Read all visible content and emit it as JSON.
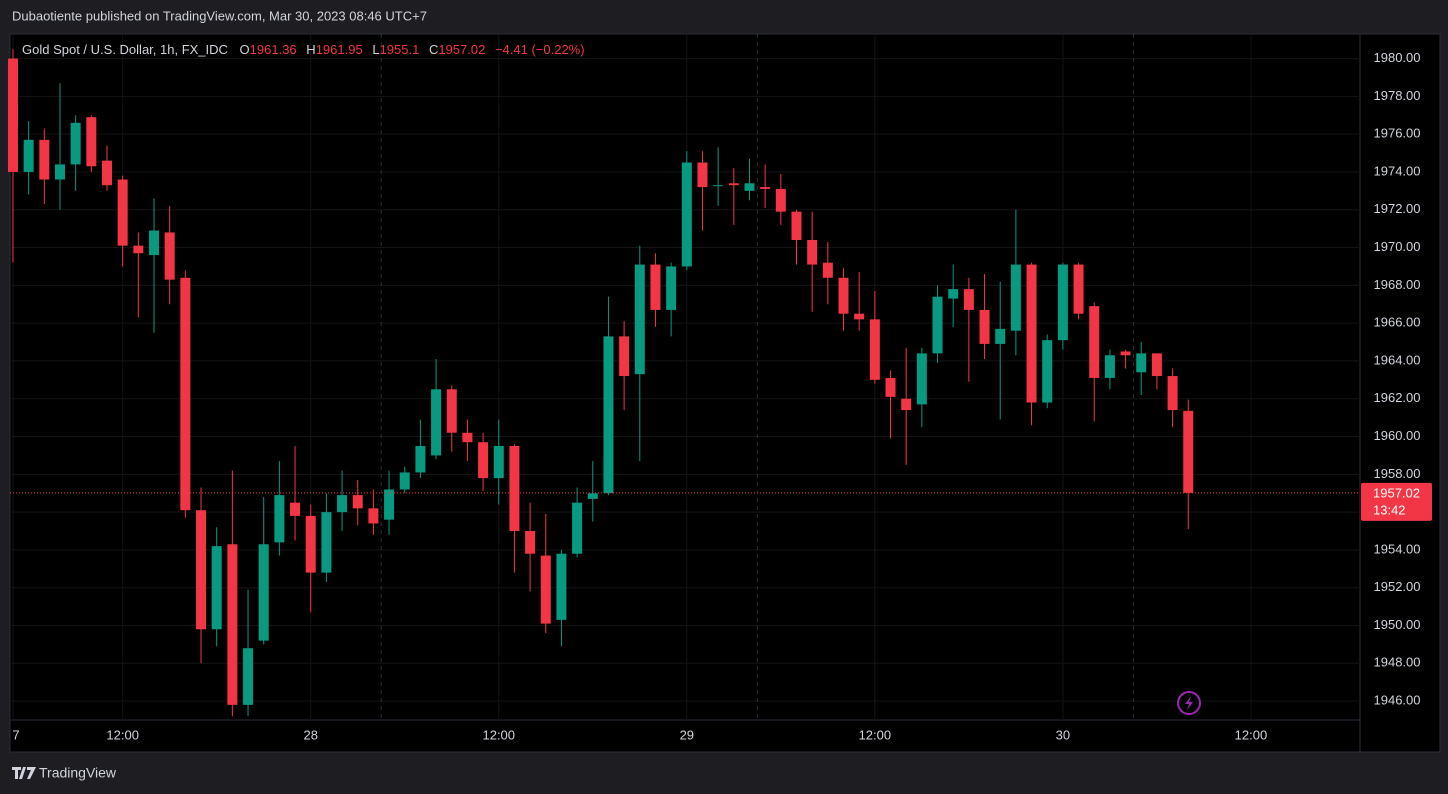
{
  "header": {
    "publisher": "Dubaotiente published on TradingView.com, Mar 30, 2023 08:46 UTC+7"
  },
  "footer": {
    "brand": "TradingView"
  },
  "chart_data": {
    "type": "candlestick",
    "symbol": "Gold Spot / U.S. Dollar, 1h, FX_IDC",
    "legend_open": "O",
    "legend_high": "H",
    "legend_low": "L",
    "legend_close": "C",
    "change_label": "−4.41 (−0.22%)",
    "countdown": "13:42",
    "up_color": "#089981",
    "down_color": "#f23645",
    "open": [
      1980,
      1974,
      1975.7,
      1973.6,
      1974.4,
      1976.9,
      1974.6,
      1973.6,
      1970.1,
      1969.6,
      1970.8,
      1968.4,
      1956.1,
      1949.8,
      1954.3,
      1945.8,
      1949.2,
      1954.4,
      1956.5,
      1955.8,
      1952.8,
      1956,
      1956.9,
      1956.2,
      1955.6,
      1957.2,
      1958.1,
      1959,
      1962.5,
      1960.2,
      1959.7,
      1957.8,
      1959.5,
      1955,
      1953.7,
      1950.3,
      1953.8,
      1956.7,
      1957,
      1965.3,
      1963.3,
      1969.1,
      1966.7,
      1969,
      1974.5,
      1973.3,
      1973.4,
      1973,
      1973.2,
      1973.1,
      1971.9,
      1970.4,
      1969.2,
      1968.4,
      1966.5,
      1966.2,
      1963.1,
      1962,
      1961.7,
      1964.4,
      1967.3,
      1967.8,
      1966.7,
      1964.9,
      1965.6,
      1969.1,
      1961.8,
      1965.1,
      1969.1,
      1966.9,
      1963.1,
      1964.5,
      1963.4,
      1964.4,
      1963.2,
      1961.36
    ],
    "high": [
      1980.5,
      1976.7,
      1976.3,
      1978.7,
      1977,
      1977,
      1975.4,
      1973.8,
      1970.8,
      1972.6,
      1972.2,
      1968.8,
      1957.3,
      1955.2,
      1958.2,
      1951.9,
      1956.8,
      1958.7,
      1959.5,
      1956.4,
      1957,
      1958.2,
      1957.7,
      1957.2,
      1958.2,
      1958.4,
      1960.9,
      1964.1,
      1962.7,
      1960.9,
      1960.2,
      1960.9,
      1959.6,
      1956.5,
      1955.9,
      1954,
      1957.3,
      1958.7,
      1967.4,
      1966.1,
      1970.1,
      1969.7,
      1969.2,
      1975.1,
      1975.1,
      1975.3,
      1974.2,
      1974.7,
      1974.4,
      1973.9,
      1972,
      1971.9,
      1970.3,
      1968.9,
      1968.7,
      1967.7,
      1963.5,
      1964.7,
      1964.7,
      1968,
      1969.1,
      1968.4,
      1968.6,
      1968.2,
      1972,
      1969.2,
      1965.4,
      1969.2,
      1969.2,
      1967.1,
      1964.6,
      1964.6,
      1965,
      1964.4,
      1963.6,
      1961.95
    ],
    "low": [
      1969.2,
      1972.8,
      1972.3,
      1972,
      1973,
      1974,
      1973,
      1969,
      1966.3,
      1965.5,
      1967,
      1955.7,
      1948,
      1948.9,
      1945.2,
      1945.2,
      1949,
      1953.7,
      1954.5,
      1950.7,
      1952.3,
      1955,
      1955.3,
      1954.8,
      1954.8,
      1957,
      1957.8,
      1958.8,
      1959.2,
      1958.7,
      1957.1,
      1956.4,
      1952.8,
      1951.8,
      1949.6,
      1948.9,
      1953.6,
      1955.5,
      1956.9,
      1961.4,
      1958.7,
      1965.8,
      1965.3,
      1968.8,
      1970.9,
      1972.2,
      1971.2,
      1972.5,
      1972.1,
      1971.2,
      1969.1,
      1966.6,
      1967,
      1965.6,
      1965.6,
      1962.8,
      1959.9,
      1958.5,
      1960.5,
      1963.9,
      1965.8,
      1962.9,
      1964.1,
      1960.9,
      1964.3,
      1960.6,
      1961.5,
      1964.6,
      1966.2,
      1960.8,
      1962.5,
      1963.6,
      1962.2,
      1962.5,
      1960.5,
      1955.1
    ],
    "close": [
      1974,
      1975.7,
      1973.6,
      1974.4,
      1976.6,
      1974.3,
      1973.3,
      1970.1,
      1969.7,
      1970.9,
      1968.3,
      1956.1,
      1949.8,
      1954.2,
      1945.8,
      1948.8,
      1954.3,
      1956.9,
      1955.8,
      1952.8,
      1956,
      1956.9,
      1956.2,
      1955.4,
      1957.2,
      1958.1,
      1959.5,
      1962.5,
      1960.2,
      1959.7,
      1957.8,
      1959.5,
      1955,
      1953.8,
      1950.1,
      1953.8,
      1956.5,
      1957,
      1965.3,
      1963.2,
      1969.1,
      1966.7,
      1969,
      1974.5,
      1973.2,
      1973.3,
      1973.3,
      1973.4,
      1973.1,
      1971.9,
      1970.4,
      1969.1,
      1968.4,
      1966.5,
      1966.2,
      1963,
      1962.1,
      1961.4,
      1964.4,
      1967.4,
      1967.8,
      1966.7,
      1964.9,
      1965.7,
      1969.1,
      1961.8,
      1965.1,
      1969.1,
      1966.5,
      1963.1,
      1964.3,
      1964.3,
      1964.4,
      1963.2,
      1961.4,
      1957.02
    ],
    "xlim": [
      -0.19,
      85.96
    ],
    "xticks": [
      {
        "value": 0,
        "label": "7"
      },
      {
        "value": 7,
        "label": "12:00"
      },
      {
        "value": 19,
        "label": "28"
      },
      {
        "value": 31,
        "label": "12:00"
      },
      {
        "value": 43,
        "label": "29"
      },
      {
        "value": 55,
        "label": "12:00"
      },
      {
        "value": 67,
        "label": "30"
      },
      {
        "value": 79,
        "label": "12:00"
      }
    ],
    "session_breaks": [
      23.5,
      47.5,
      71.5
    ],
    "ylim": [
      1945,
      1981.3
    ],
    "yticks": [
      {
        "value": 1946,
        "label": "1946.00"
      },
      {
        "value": 1948,
        "label": "1948.00"
      },
      {
        "value": 1950,
        "label": "1950.00"
      },
      {
        "value": 1952,
        "label": "1952.00"
      },
      {
        "value": 1954,
        "label": "1954.00"
      },
      {
        "value": 1956,
        "label": "1956.00"
      },
      {
        "value": 1958,
        "label": "1958.00"
      },
      {
        "value": 1960,
        "label": "1960.00"
      },
      {
        "value": 1962,
        "label": "1962.00"
      },
      {
        "value": 1964,
        "label": "1964.00"
      },
      {
        "value": 1966,
        "label": "1966.00"
      },
      {
        "value": 1968,
        "label": "1968.00"
      },
      {
        "value": 1970,
        "label": "1970.00"
      },
      {
        "value": 1972,
        "label": "1972.00"
      },
      {
        "value": 1974,
        "label": "1974.00"
      },
      {
        "value": 1976,
        "label": "1976.00"
      },
      {
        "value": 1978,
        "label": "1978.00"
      },
      {
        "value": 1980,
        "label": "1980.00"
      }
    ],
    "grid": true
  }
}
